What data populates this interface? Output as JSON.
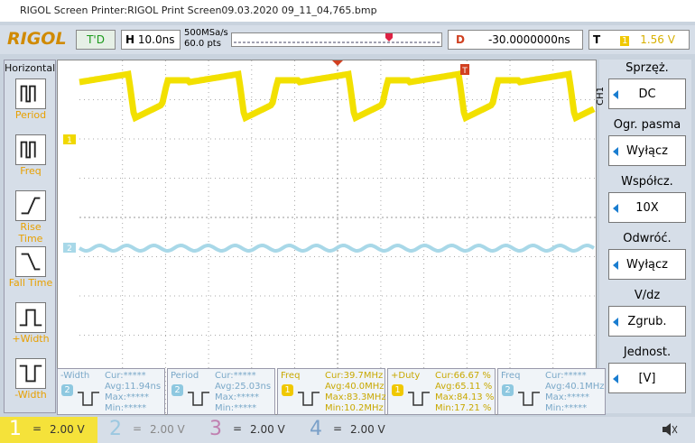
{
  "window": {
    "title": "RIGOL Screen Printer:RIGOL Print Screen09.03.2020 09_11_04,765.bmp"
  },
  "toolbar": {
    "logo": "RIGOL",
    "status": "T'D",
    "h_label": "H",
    "timebase": "10.0ns",
    "sample_rate": "500MSa/s",
    "points": "60.0 pts",
    "d_label": "D",
    "delay": "-30.0000000ns",
    "t_label": "T",
    "trigger_source": "1",
    "trigger_level": "1.56 V"
  },
  "left_menu": {
    "title": "Horizontal",
    "items": [
      "Period",
      "Freq",
      "Rise Time",
      "Fall Time",
      "+Width",
      "-Width"
    ]
  },
  "right_menu": {
    "channel": "CH1",
    "items": [
      {
        "label": "Sprzęż.",
        "value": "DC"
      },
      {
        "label": "Ogr. pasma",
        "value": "Wyłącz"
      },
      {
        "label": "Współcz.",
        "value": "10X"
      },
      {
        "label": "Odwróć.",
        "value": "Wyłącz"
      },
      {
        "label": "V/dz",
        "value": "Zgrub."
      },
      {
        "label": "Jednost.",
        "value": "[V]"
      }
    ]
  },
  "screen": {
    "markers": [
      "1",
      "2"
    ],
    "trigger_marker": "T"
  },
  "measurements": [
    {
      "name": "-Width",
      "source": "2",
      "cur": "Cur:*****",
      "avg": "Avg:11.94ns",
      "max": "Max:*****",
      "min": "Min:*****"
    },
    {
      "name": "Period",
      "source": "2",
      "cur": "Cur:*****",
      "avg": "Avg:25.03ns",
      "max": "Max:*****",
      "min": "Min:*****"
    },
    {
      "name": "Freq",
      "source": "1",
      "cur": "Cur:39.7MHz",
      "avg": "Avg:40.0MHz",
      "max": "Max:83.3MHz",
      "min": "Min:10.2MHz"
    },
    {
      "name": "+Duty",
      "source": "1",
      "cur": "Cur:66.67 %",
      "avg": "Avg:65.11 %",
      "max": "Max:84.13 %",
      "min": "Min:17.21 %"
    },
    {
      "name": "Freq",
      "source": "2",
      "cur": "Cur:*****",
      "avg": "Avg:40.1MHz",
      "max": "Max:*****",
      "min": "Min:*****"
    }
  ],
  "channels": [
    {
      "number": "1",
      "coupling": "=",
      "scale": "2.00 V"
    },
    {
      "number": "2",
      "coupling": "=",
      "scale": "2.00 V"
    },
    {
      "number": "3",
      "coupling": "=",
      "scale": "2.00 V"
    },
    {
      "number": "4",
      "coupling": "=",
      "scale": "2.00 V"
    }
  ]
}
